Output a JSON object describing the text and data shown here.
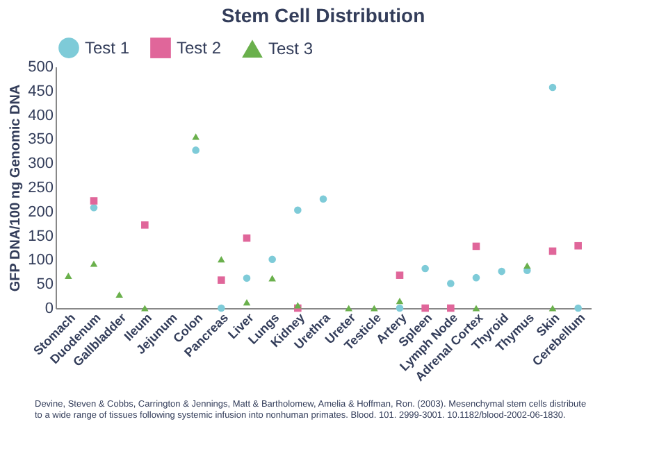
{
  "chart_data": {
    "type": "scatter",
    "title": "Stem Cell Distribution",
    "ylabel": "GFP DNA/100 ng Genomic DNA",
    "categories": [
      "Stomach",
      "Duodenum",
      "Gallbladder",
      "Ileum",
      "Jejunum",
      "Colon",
      "Pancreas",
      "Liver",
      "Lungs",
      "Kidney",
      "Urethra",
      "Ureter",
      "Testicle",
      "Artery",
      "Spleen",
      "Lymph Node",
      "Adrenal Cortex",
      "Thyroid",
      "Thymus",
      "Skin",
      "Cerebellum"
    ],
    "series": [
      {
        "name": "Test 1",
        "color": "#7ecbd8",
        "marker": "circle",
        "values": [
          null,
          208,
          null,
          null,
          null,
          327,
          0,
          62,
          101,
          203,
          226,
          null,
          null,
          0,
          82,
          51,
          63,
          76,
          78,
          457,
          0
        ]
      },
      {
        "name": "Test 2",
        "color": "#e0669a",
        "marker": "square",
        "values": [
          null,
          222,
          null,
          172,
          null,
          null,
          58,
          145,
          null,
          0,
          null,
          null,
          null,
          68,
          0,
          0,
          128,
          null,
          null,
          118,
          129
        ]
      },
      {
        "name": "Test 3",
        "color": "#6ab04c",
        "marker": "triangle",
        "values": [
          67,
          92,
          28,
          0,
          null,
          355,
          101,
          12,
          62,
          6,
          null,
          0,
          0,
          15,
          null,
          null,
          0,
          null,
          88,
          0,
          null
        ]
      }
    ],
    "ylim": [
      0,
      500
    ],
    "yticks": [
      0,
      50,
      100,
      150,
      200,
      250,
      300,
      350,
      400,
      450,
      500
    ],
    "grid": false,
    "legend": "top",
    "annotations": [
      "Devine, Steven & Cobbs, Carrington & Jennings, Matt & Bartholomew, Amelia & Hoffman, Ron. (2003). Mesenchymal stem cells distribute to a wide range of tissues following systemic infusion into nonhuman primates. Blood. 101. 2999-3001. 10.1182/blood-2002-06-1830."
    ]
  }
}
